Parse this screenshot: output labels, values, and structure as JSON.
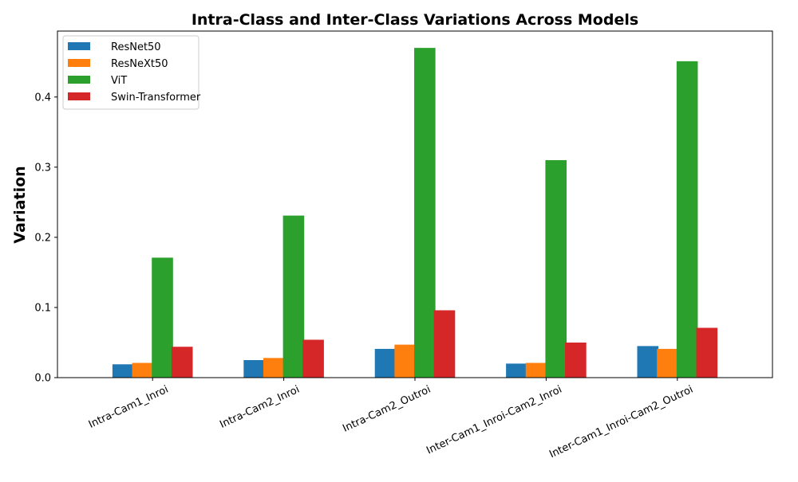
{
  "chart_data": {
    "type": "bar",
    "title": "Intra-Class and Inter-Class Variations Across Models",
    "xlabel": "",
    "ylabel": "Variation",
    "categories": [
      "Intra-Cam1_Inroi",
      "Intra-Cam2_Inroi",
      "Intra-Cam2_Outroi",
      "Inter-Cam1_Inroi-Cam2_Inroi",
      "Inter-Cam1_Inroi-Cam2_Outroi"
    ],
    "series": [
      {
        "name": "ResNet50",
        "color": "#1f77b4",
        "values": [
          0.019,
          0.025,
          0.041,
          0.02,
          0.045
        ]
      },
      {
        "name": "ResNeXt50",
        "color": "#ff7f0e",
        "values": [
          0.021,
          0.028,
          0.047,
          0.021,
          0.041
        ]
      },
      {
        "name": "ViT",
        "color": "#2ca02c",
        "values": [
          0.171,
          0.231,
          0.47,
          0.31,
          0.451
        ]
      },
      {
        "name": "Swin-Transformer",
        "color": "#d62728",
        "values": [
          0.044,
          0.054,
          0.096,
          0.05,
          0.071
        ]
      }
    ],
    "ylim": [
      0,
      0.494
    ],
    "yticks": [
      0.0,
      0.1,
      0.2,
      0.3,
      0.4
    ],
    "ytick_labels": [
      "0.0",
      "0.1",
      "0.2",
      "0.3",
      "0.4"
    ],
    "xtick_rotation": 25,
    "legend": "top-left",
    "grid": false
  }
}
